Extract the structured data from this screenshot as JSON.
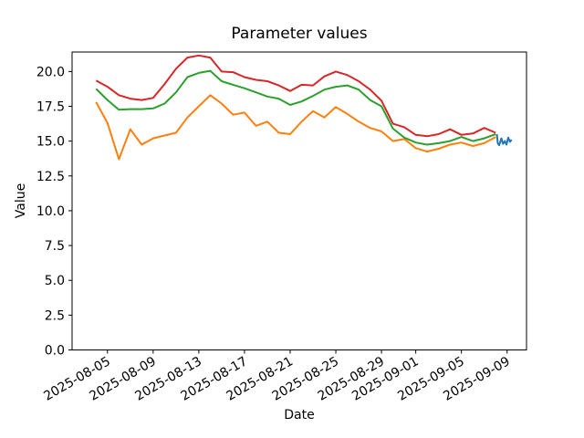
{
  "figure": {
    "title": "Parameter values",
    "xlabel": "Date",
    "ylabel": "Value"
  },
  "chart_data": {
    "type": "line",
    "title": "Parameter values",
    "xlabel": "Date",
    "ylabel": "Value",
    "grid": false,
    "legend": null,
    "background": "#ffffff",
    "axis_color": "#000000",
    "x_unit": "date",
    "x_start_date": "2025-08-04",
    "ylim": [
      0,
      21.4
    ],
    "xlim_days": [
      -2.1,
      37.7
    ],
    "y_ticks": [
      "0.0",
      "2.5",
      "5.0",
      "7.5",
      "10.0",
      "12.5",
      "15.0",
      "17.5",
      "20.0"
    ],
    "x_ticks": [
      {
        "label": "2025-08-05",
        "day": 1
      },
      {
        "label": "2025-08-09",
        "day": 5
      },
      {
        "label": "2025-08-13",
        "day": 9
      },
      {
        "label": "2025-08-17",
        "day": 13
      },
      {
        "label": "2025-08-21",
        "day": 17
      },
      {
        "label": "2025-08-25",
        "day": 21
      },
      {
        "label": "2025-08-29",
        "day": 25
      },
      {
        "label": "2025-09-01",
        "day": 28
      },
      {
        "label": "2025-09-05",
        "day": 32
      },
      {
        "label": "2025-09-09",
        "day": 36
      }
    ],
    "series": [
      {
        "name": "orange-line",
        "color": "#ff7f0e",
        "x_days": [
          0,
          1,
          2,
          3,
          4,
          5,
          6,
          7,
          8,
          9,
          10,
          11,
          12,
          13,
          14,
          15,
          16,
          17,
          18,
          19,
          20,
          21,
          22,
          23,
          24,
          25,
          26,
          27,
          28,
          29,
          30,
          31,
          32,
          33,
          34,
          35
        ],
        "values": [
          17.8,
          16.3,
          13.7,
          15.85,
          14.75,
          15.2,
          15.4,
          15.6,
          16.7,
          17.5,
          18.3,
          17.7,
          16.9,
          17.05,
          16.1,
          16.4,
          15.6,
          15.5,
          16.4,
          17.15,
          16.7,
          17.45,
          16.95,
          16.4,
          15.95,
          15.7,
          15.0,
          15.15,
          14.5,
          14.25,
          14.45,
          14.75,
          14.9,
          14.65,
          14.85,
          15.3
        ]
      },
      {
        "name": "green-line",
        "color": "#2ca02c",
        "x_days": [
          0,
          1,
          2,
          3,
          4,
          5,
          6,
          7,
          8,
          9,
          10,
          11,
          12,
          13,
          14,
          15,
          16,
          17,
          18,
          19,
          20,
          21,
          22,
          23,
          24,
          25,
          26,
          27,
          28,
          29,
          30,
          31,
          32,
          33,
          34,
          35
        ],
        "values": [
          18.75,
          17.95,
          17.25,
          17.3,
          17.3,
          17.35,
          17.7,
          18.5,
          19.6,
          19.9,
          20.05,
          19.3,
          19.05,
          18.8,
          18.5,
          18.2,
          18.05,
          17.6,
          17.85,
          18.25,
          18.7,
          18.9,
          19.0,
          18.7,
          17.95,
          17.5,
          15.9,
          15.25,
          14.9,
          14.75,
          14.85,
          15.0,
          15.3,
          15.0,
          15.2,
          15.5
        ]
      },
      {
        "name": "red-line",
        "color": "#d62728",
        "x_days": [
          0,
          1,
          2,
          3,
          4,
          5,
          6,
          7,
          8,
          9,
          10,
          11,
          12,
          13,
          14,
          15,
          16,
          17,
          18,
          19,
          20,
          21,
          22,
          23,
          24,
          25,
          26,
          27,
          28,
          29,
          30,
          31,
          32,
          33,
          34,
          35
        ],
        "values": [
          19.35,
          18.9,
          18.3,
          18.05,
          17.95,
          18.1,
          19.1,
          20.2,
          21.0,
          21.15,
          21.0,
          20.0,
          19.95,
          19.6,
          19.4,
          19.3,
          19.0,
          18.6,
          19.05,
          19.0,
          19.65,
          20.0,
          19.75,
          19.3,
          18.7,
          17.9,
          16.25,
          16.0,
          15.45,
          15.35,
          15.5,
          15.85,
          15.45,
          15.55,
          15.95,
          15.6
        ]
      },
      {
        "name": "blue-line",
        "color": "#1f77b4",
        "x_days": [
          35.1,
          35.18,
          35.3,
          35.5,
          35.65,
          35.8,
          35.95,
          36.1,
          36.25,
          36.4
        ],
        "values": [
          15.5,
          14.85,
          14.7,
          15.2,
          14.8,
          15.0,
          14.75,
          15.25,
          14.95,
          15.1
        ]
      }
    ]
  }
}
